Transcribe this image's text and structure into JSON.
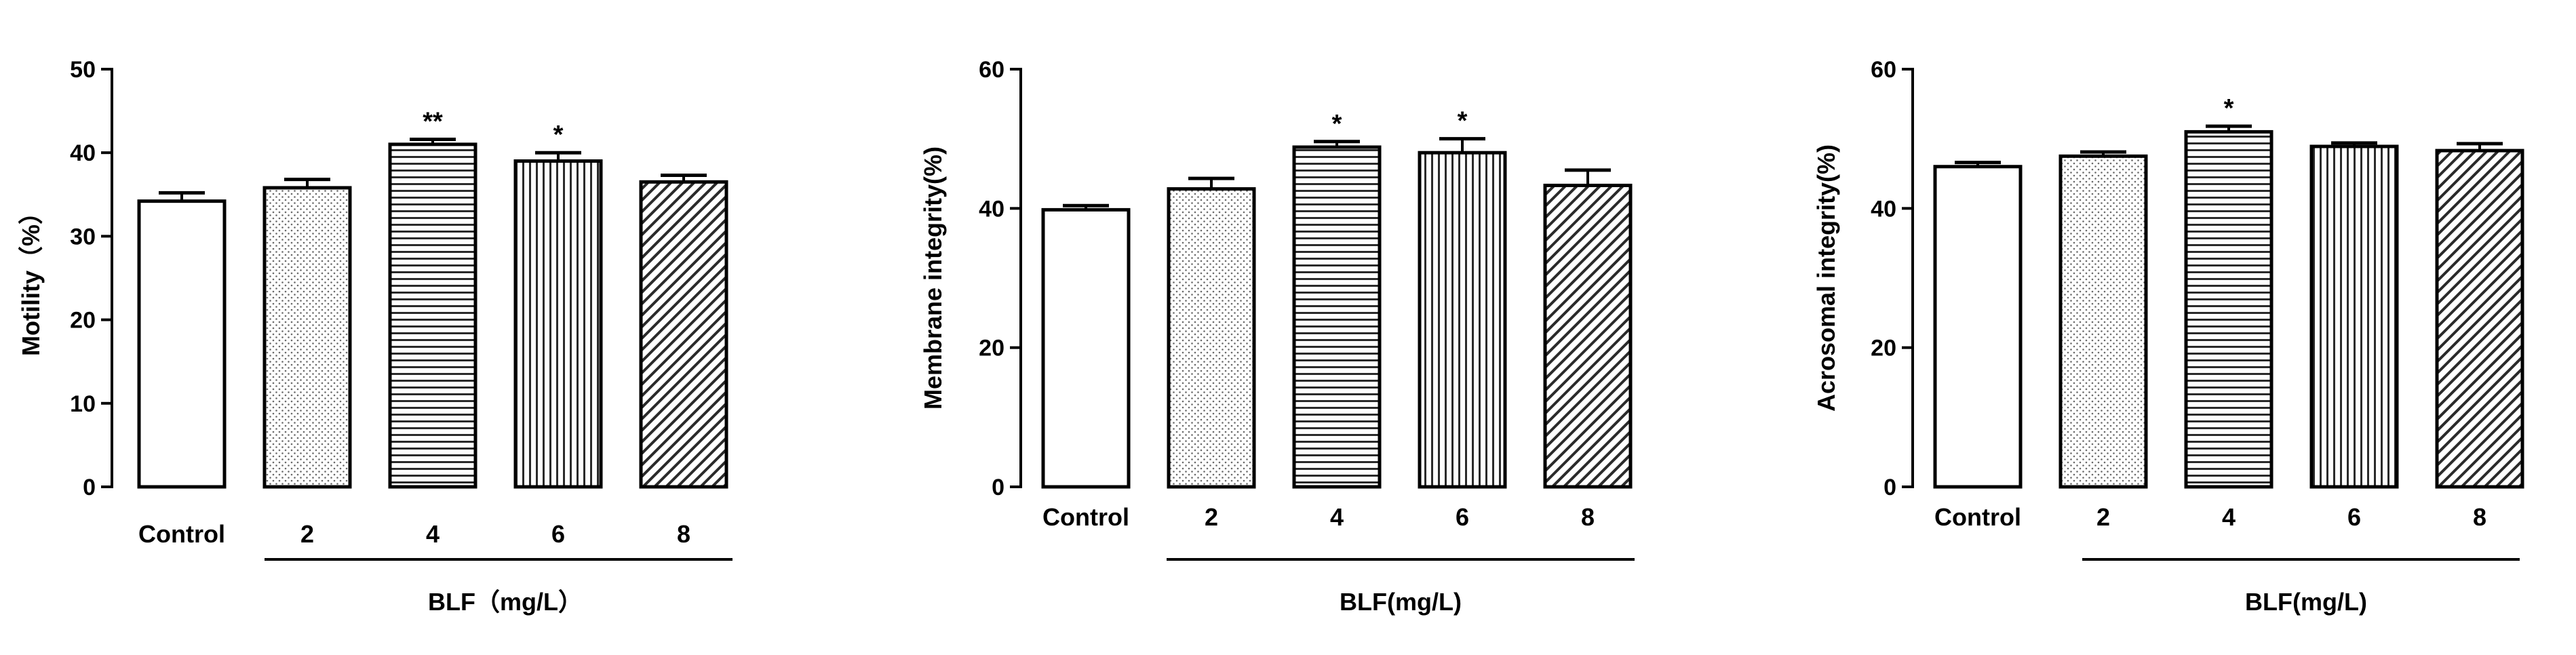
{
  "chart_data": [
    {
      "type": "bar",
      "categories": [
        "Control",
        "2",
        "4",
        "6",
        "8"
      ],
      "values": [
        34.2,
        35.8,
        41.0,
        39.0,
        36.5
      ],
      "errors": [
        1.0,
        1.0,
        0.6,
        1.0,
        0.8
      ],
      "significance": [
        "",
        "",
        "**",
        "*",
        ""
      ],
      "patterns": [
        "blank",
        "dots",
        "hlines",
        "vlines",
        "diag"
      ],
      "ylabel": "Motility（%）",
      "ylim": [
        0,
        50
      ],
      "yticks": [
        0,
        10,
        20,
        30,
        40,
        50
      ],
      "group_label": "BLF（mg/L）",
      "grid": false
    },
    {
      "type": "bar",
      "categories": [
        "Control",
        "2",
        "4",
        "6",
        "8"
      ],
      "values": [
        39.8,
        42.8,
        48.8,
        48.0,
        43.3
      ],
      "errors": [
        0.6,
        1.5,
        0.8,
        2.0,
        2.2
      ],
      "significance": [
        "",
        "",
        "*",
        "*",
        ""
      ],
      "patterns": [
        "blank",
        "dots",
        "hlines",
        "vlines",
        "diag"
      ],
      "ylabel": "Membrane integrity(%)",
      "ylim": [
        0,
        60
      ],
      "yticks": [
        0,
        20,
        40,
        60
      ],
      "group_label": "BLF(mg/L)",
      "grid": false
    },
    {
      "type": "bar",
      "categories": [
        "Control",
        "2",
        "4",
        "6",
        "8"
      ],
      "values": [
        46.0,
        47.5,
        51.0,
        48.9,
        48.3
      ],
      "errors": [
        0.6,
        0.6,
        0.8,
        0.5,
        1.0
      ],
      "significance": [
        "",
        "",
        "*",
        "",
        ""
      ],
      "patterns": [
        "blank",
        "dots",
        "hlines",
        "vlines",
        "diag"
      ],
      "ylabel": "Acrosomal integrity(%)",
      "ylim": [
        0,
        60
      ],
      "yticks": [
        0,
        20,
        40,
        60
      ],
      "group_label": "BLF(mg/L)",
      "grid": false
    }
  ]
}
